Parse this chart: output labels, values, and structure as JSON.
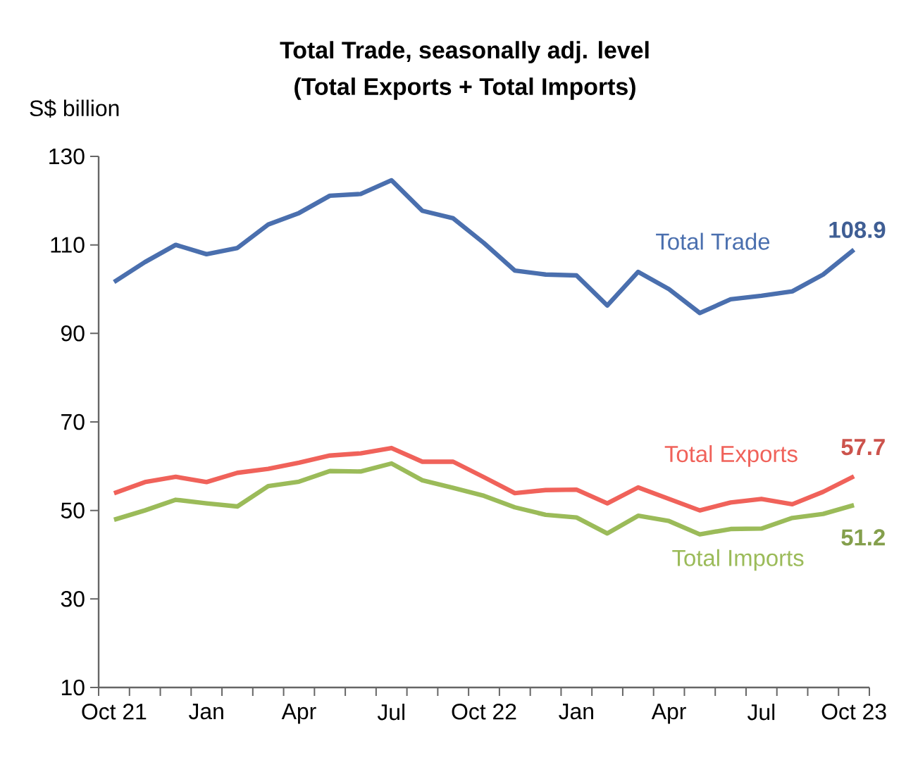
{
  "chart_data": {
    "type": "line",
    "title": "Total Trade, seasonally adj. level\n(Total Exports + Total Imports)",
    "ylabel": "S$ billion",
    "categories": [
      "Oct 21",
      null,
      null,
      "Jan",
      null,
      null,
      "Apr",
      null,
      null,
      "Jul",
      null,
      null,
      "Oct 22",
      null,
      null,
      "Jan",
      null,
      null,
      "Apr",
      null,
      null,
      "Jul",
      null,
      null,
      "Oct 23"
    ],
    "series": [
      {
        "name": "Total Trade",
        "color": "#4a6fae",
        "values": [
          101.6,
          106.1,
          110.0,
          107.9,
          109.3,
          114.6,
          117.2,
          121.1,
          121.5,
          124.6,
          117.7,
          116.0,
          110.4,
          104.2,
          103.3,
          103.1,
          96.3,
          103.9,
          100.0,
          94.6,
          97.7,
          98.5,
          99.5,
          103.3,
          108.9
        ],
        "value_labels": [
          null,
          null,
          null,
          null,
          null,
          null,
          null,
          null,
          null,
          null,
          null,
          null,
          null,
          null,
          null,
          null,
          null,
          null,
          null,
          null,
          null,
          null,
          null,
          null,
          "108.9"
        ]
      },
      {
        "name": "Total Exports",
        "color": "#f0625a",
        "values": [
          53.9,
          56.4,
          57.6,
          56.4,
          58.5,
          59.4,
          60.8,
          62.4,
          62.9,
          64.1,
          61.0,
          61.0,
          57.5,
          53.9,
          54.6,
          54.7,
          51.6,
          55.2,
          52.6,
          50.0,
          51.8,
          52.6,
          51.4,
          54.2,
          57.7
        ],
        "value_labels": [
          null,
          null,
          null,
          null,
          null,
          null,
          null,
          null,
          null,
          null,
          null,
          null,
          null,
          null,
          null,
          null,
          null,
          null,
          null,
          null,
          null,
          null,
          null,
          null,
          "57.7"
        ]
      },
      {
        "name": "Total Imports",
        "color": "#9bbb59",
        "values": [
          47.9,
          50.0,
          52.4,
          51.6,
          50.9,
          55.5,
          56.5,
          58.9,
          58.8,
          60.6,
          56.8,
          55.1,
          53.3,
          50.7,
          49.0,
          48.4,
          44.8,
          48.8,
          47.6,
          44.6,
          45.8,
          45.9,
          48.3,
          49.2,
          51.2
        ],
        "value_labels": [
          null,
          null,
          null,
          null,
          null,
          null,
          null,
          null,
          null,
          null,
          null,
          null,
          null,
          null,
          null,
          null,
          null,
          null,
          null,
          null,
          null,
          null,
          null,
          null,
          "51.2"
        ]
      }
    ],
    "ylim": [
      10,
      130
    ],
    "yticks": [
      10,
      30,
      50,
      70,
      90,
      110,
      130
    ],
    "marker": "none",
    "line_style": "solid"
  }
}
